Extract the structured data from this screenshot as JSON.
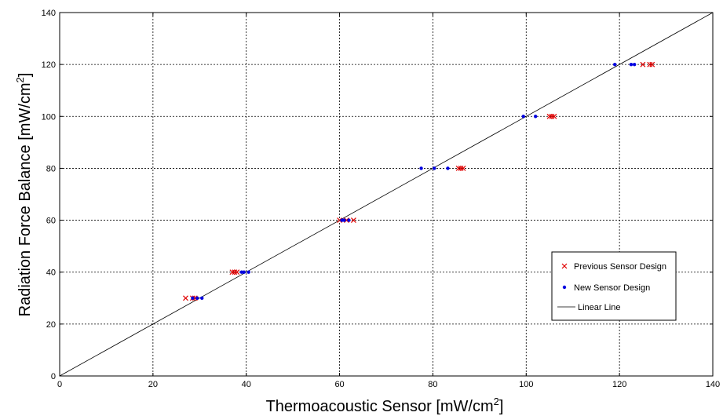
{
  "chart_data": {
    "type": "scatter",
    "title": "",
    "xlabel": "Thermoacoustic Sensor [mW/cm",
    "xlabel_sup": "2",
    "xlabel_end": "]",
    "ylabel": "Radiation Force Balance [mW/cm",
    "ylabel_sup": "2",
    "ylabel_end": "]",
    "xlim": [
      0,
      140
    ],
    "ylim": [
      0,
      140
    ],
    "xticks": [
      "0",
      "20",
      "40",
      "60",
      "80",
      "100",
      "120",
      "140"
    ],
    "yticks": [
      "0",
      "20",
      "40",
      "60",
      "80",
      "100",
      "120",
      "140"
    ],
    "grid": true,
    "legend_position": "bottom-right",
    "series": [
      {
        "name": "Previous Sensor Design",
        "marker": "x",
        "color": "#e00000",
        "points": [
          [
            27,
            30
          ],
          [
            28.5,
            30
          ],
          [
            29,
            30
          ],
          [
            37,
            40
          ],
          [
            37.5,
            40
          ],
          [
            38,
            40
          ],
          [
            60,
            60
          ],
          [
            61.5,
            60
          ],
          [
            63,
            60
          ],
          [
            85.5,
            80
          ],
          [
            86,
            80
          ],
          [
            86.5,
            80
          ],
          [
            105,
            100
          ],
          [
            105.5,
            100
          ],
          [
            106,
            100
          ],
          [
            125,
            120
          ],
          [
            126.5,
            120
          ],
          [
            127,
            120
          ]
        ]
      },
      {
        "name": "New Sensor Design",
        "marker": "dot",
        "color": "#0000e0",
        "points": [
          [
            28.5,
            30
          ],
          [
            29.5,
            30
          ],
          [
            30.5,
            30
          ],
          [
            39,
            40
          ],
          [
            39.5,
            40
          ],
          [
            40.5,
            40
          ],
          [
            60.5,
            60
          ],
          [
            61,
            60
          ],
          [
            62,
            60
          ],
          [
            77.5,
            80
          ],
          [
            80.3,
            80
          ],
          [
            83.2,
            80
          ],
          [
            99.4,
            100
          ],
          [
            102,
            100
          ],
          [
            119,
            120
          ],
          [
            122.5,
            120
          ],
          [
            123.2,
            120
          ]
        ]
      },
      {
        "name": "Linear Line",
        "marker": "line",
        "color": "#000000",
        "line": [
          [
            0,
            0
          ],
          [
            140,
            140
          ]
        ]
      }
    ]
  }
}
